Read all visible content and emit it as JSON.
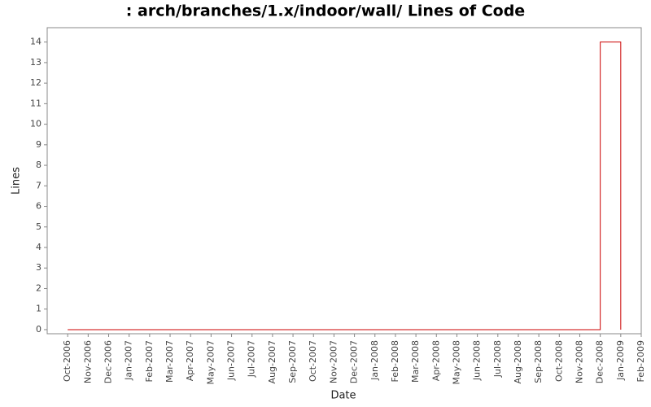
{
  "chart_data": {
    "type": "line",
    "title": ": arch/branches/1.x/indoor/wall/ Lines of Code",
    "x_label": "Date",
    "y_label": "Lines",
    "x": [
      "2006-10",
      "2008-12",
      "2008-12",
      "2009-01",
      "2009-01"
    ],
    "values": [
      0,
      0,
      14,
      14,
      0
    ],
    "color": "#cc0000",
    "xlim": [
      "2006-09",
      "2009-02"
    ],
    "xticks": [
      {
        "value": "2006-10",
        "label": "Oct-2006"
      },
      {
        "value": "2006-11",
        "label": "Nov-2006"
      },
      {
        "value": "2006-12",
        "label": "Dec-2006"
      },
      {
        "value": "2007-01",
        "label": "Jan-2007"
      },
      {
        "value": "2007-02",
        "label": "Feb-2007"
      },
      {
        "value": "2007-03",
        "label": "Mar-2007"
      },
      {
        "value": "2007-04",
        "label": "Apr-2007"
      },
      {
        "value": "2007-05",
        "label": "May-2007"
      },
      {
        "value": "2007-06",
        "label": "Jun-2007"
      },
      {
        "value": "2007-07",
        "label": "Jul-2007"
      },
      {
        "value": "2007-08",
        "label": "Aug-2007"
      },
      {
        "value": "2007-09",
        "label": "Sep-2007"
      },
      {
        "value": "2007-10",
        "label": "Oct-2007"
      },
      {
        "value": "2007-11",
        "label": "Nov-2007"
      },
      {
        "value": "2007-12",
        "label": "Dec-2007"
      },
      {
        "value": "2008-01",
        "label": "Jan-2008"
      },
      {
        "value": "2008-02",
        "label": "Feb-2008"
      },
      {
        "value": "2008-03",
        "label": "Mar-2008"
      },
      {
        "value": "2008-04",
        "label": "Apr-2008"
      },
      {
        "value": "2008-05",
        "label": "May-2008"
      },
      {
        "value": "2008-06",
        "label": "Jun-2008"
      },
      {
        "value": "2008-07",
        "label": "Jul-2008"
      },
      {
        "value": "2008-08",
        "label": "Aug-2008"
      },
      {
        "value": "2008-09",
        "label": "Sep-2008"
      },
      {
        "value": "2008-10",
        "label": "Oct-2008"
      },
      {
        "value": "2008-11",
        "label": "Nov-2008"
      },
      {
        "value": "2008-12",
        "label": "Dec-2008"
      },
      {
        "value": "2009-01",
        "label": "Jan-2009"
      },
      {
        "value": "2009-02",
        "label": "Feb-2009"
      }
    ],
    "ylim": [
      -0.2,
      14.7
    ],
    "yticks": [
      0,
      1,
      2,
      3,
      4,
      5,
      6,
      7,
      8,
      9,
      10,
      11,
      12,
      13,
      14
    ],
    "grid": false
  }
}
